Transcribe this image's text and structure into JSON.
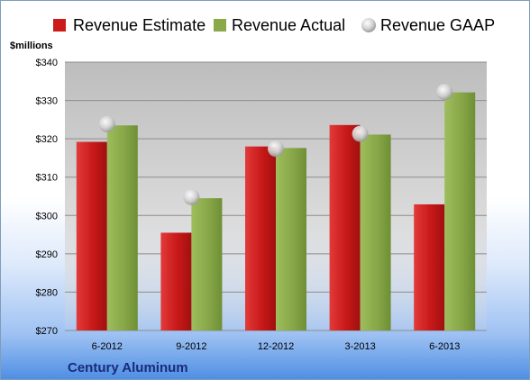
{
  "chart_data": {
    "type": "bar",
    "title": "",
    "xlabel": "",
    "ylabel": "",
    "unit_label": "$millions",
    "company": "Century Aluminum",
    "categories": [
      "6-2012",
      "9-2012",
      "12-2012",
      "3-2013",
      "6-2013"
    ],
    "series": [
      {
        "name": "Revenue Estimate",
        "kind": "bar",
        "color": "#cc1b1b",
        "values": [
          319.2,
          295.5,
          318.0,
          323.6,
          302.9
        ]
      },
      {
        "name": "Revenue Actual",
        "kind": "bar",
        "color": "#8aaa4a",
        "values": [
          323.5,
          304.5,
          317.6,
          321.1,
          332.1
        ]
      },
      {
        "name": "Revenue GAAP",
        "kind": "marker",
        "color": "#c8c8c8",
        "values": [
          323.8,
          304.8,
          317.4,
          321.3,
          332.2
        ]
      }
    ],
    "ylim": [
      270,
      340
    ],
    "yticks": [
      270,
      280,
      290,
      300,
      310,
      320,
      330,
      340
    ],
    "ytick_labels": [
      "$270",
      "$280",
      "$290",
      "$300",
      "$310",
      "$320",
      "$330",
      "$340"
    ],
    "grid": true,
    "legend_position": "top"
  }
}
